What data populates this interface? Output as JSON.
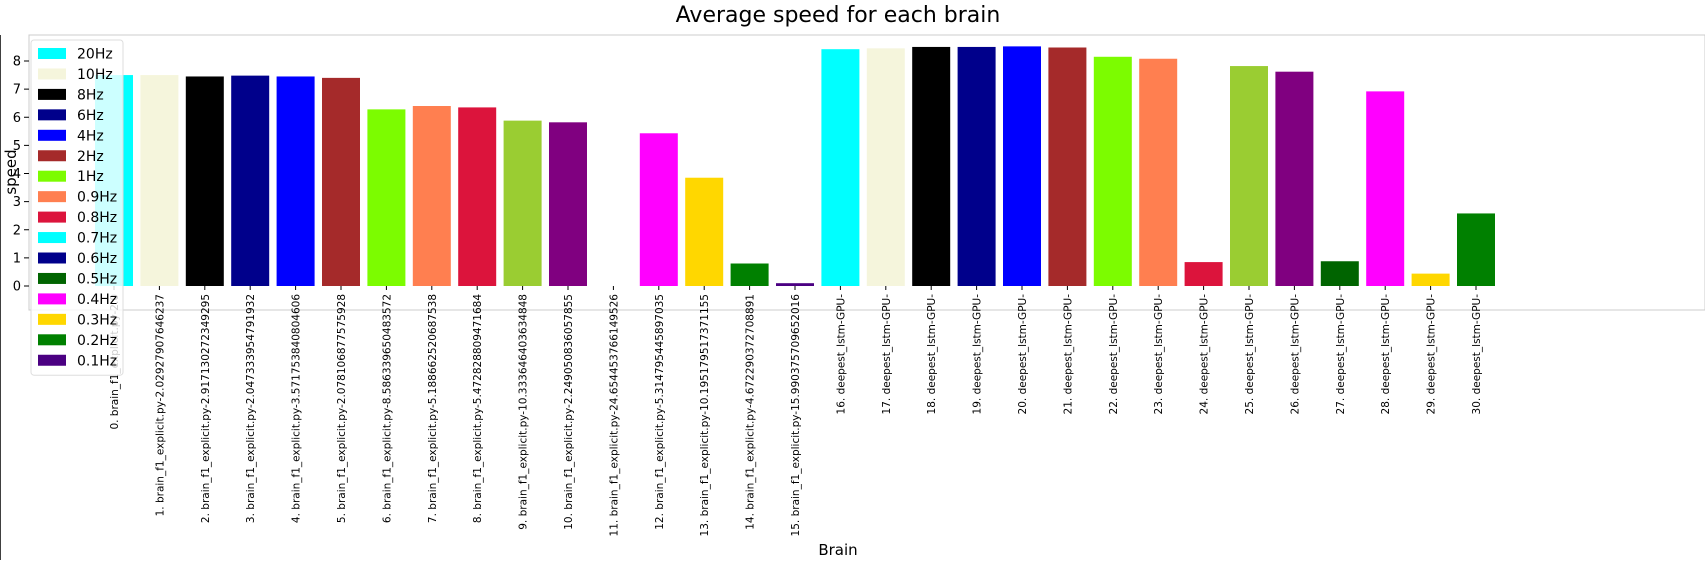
{
  "chart_data": {
    "type": "bar",
    "title": "Average speed for each brain",
    "xlabel": "Brain",
    "ylabel": "speed",
    "ylim": [
      0,
      9
    ],
    "yticks": [
      0,
      1,
      2,
      3,
      4,
      5,
      6,
      7,
      8
    ],
    "grid": false,
    "legend_placement": "top-left",
    "categories": [
      "0. brain_f1_explicit.py-2.0",
      "1. brain_f1_explicit.py-2.02927907646237",
      "2. brain_f1_explicit.py-2.917130272349295",
      "3. brain_f1_explicit.py-2.047333954791932",
      "4. brain_f1_explicit.py-3.571753840804606",
      "5. brain_f1_explicit.py-2.078106877575928",
      "6. brain_f1_explicit.py-8.586339650483572",
      "7. brain_f1_explicit.py-5.188662520687538",
      "8. brain_f1_explicit.py-5.472828809471684",
      "9. brain_f1_explicit.py-10.333646403634848",
      "10. brain_f1_explicit.py-2.249050836057855",
      "11. brain_f1_explicit.py-24.654453766149526",
      "12. brain_f1_explicit.py-5.314795445897035",
      "13. brain_f1_explicit.py-10.195179517371155",
      "14. brain_f1_explicit.py-4.672290372708891",
      "15. brain_f1_explicit.py-15.990375709652016",
      "16. deepest_lstm-GPU-",
      "17. deepest_lstm-GPU-",
      "18. deepest_lstm-GPU-",
      "19. deepest_lstm-GPU-",
      "20. deepest_lstm-GPU-",
      "21. deepest_lstm-GPU-",
      "22. deepest_lstm-GPU-",
      "23. deepest_lstm-GPU-",
      "24. deepest_lstm-GPU-",
      "25. deepest_lstm-GPU-",
      "26. deepest_lstm-GPU-",
      "27. deepest_lstm-GPU-",
      "28. deepest_lstm-GPU-",
      "29. deepest_lstm-GPU-",
      "30. deepest_lstm-GPU-"
    ],
    "values": [
      7.5,
      7.5,
      7.45,
      7.48,
      7.45,
      7.4,
      6.28,
      6.4,
      6.35,
      5.88,
      5.82,
      0,
      5.43,
      3.85,
      0.8,
      0.1,
      8.42,
      8.45,
      8.5,
      8.5,
      8.52,
      8.48,
      8.15,
      8.08,
      0.85,
      7.82,
      7.62,
      0.88,
      6.92,
      0.44,
      2.58
    ],
    "bar_colors": [
      "#00ffff",
      "#f5f5dc",
      "#000000",
      "#00008b",
      "#0000ff",
      "#a52a2a",
      "#7cfc00",
      "#ff7f50",
      "#dc143c",
      "#9acd32",
      "#800080",
      "#000000",
      "#ff00ff",
      "#ffd700",
      "#008000",
      "#4b0082",
      "#00ffff",
      "#f5f5dc",
      "#000000",
      "#00008b",
      "#0000ff",
      "#a52a2a",
      "#7cfc00",
      "#ff7f50",
      "#dc143c",
      "#9acd32",
      "#800080",
      "#006400",
      "#ff00ff",
      "#ffd700",
      "#008000"
    ],
    "legend": [
      {
        "label": "20Hz",
        "color": "#00ffff"
      },
      {
        "label": "10Hz",
        "color": "#f5f5dc"
      },
      {
        "label": "8Hz",
        "color": "#000000"
      },
      {
        "label": "6Hz",
        "color": "#00008b"
      },
      {
        "label": "4Hz",
        "color": "#0000ff"
      },
      {
        "label": "2Hz",
        "color": "#a52a2a"
      },
      {
        "label": "1Hz",
        "color": "#7cfc00"
      },
      {
        "label": "0.9Hz",
        "color": "#ff7f50"
      },
      {
        "label": "0.8Hz",
        "color": "#dc143c"
      },
      {
        "label": "0.7Hz",
        "color": "#00ffff"
      },
      {
        "label": "0.6Hz",
        "color": "#00008b"
      },
      {
        "label": "0.5Hz",
        "color": "#006400"
      },
      {
        "label": "0.4Hz",
        "color": "#ff00ff"
      },
      {
        "label": "0.3Hz",
        "color": "#ffd700"
      },
      {
        "label": "0.2Hz",
        "color": "#008000"
      },
      {
        "label": "0.1Hz",
        "color": "#4b0082"
      }
    ]
  }
}
